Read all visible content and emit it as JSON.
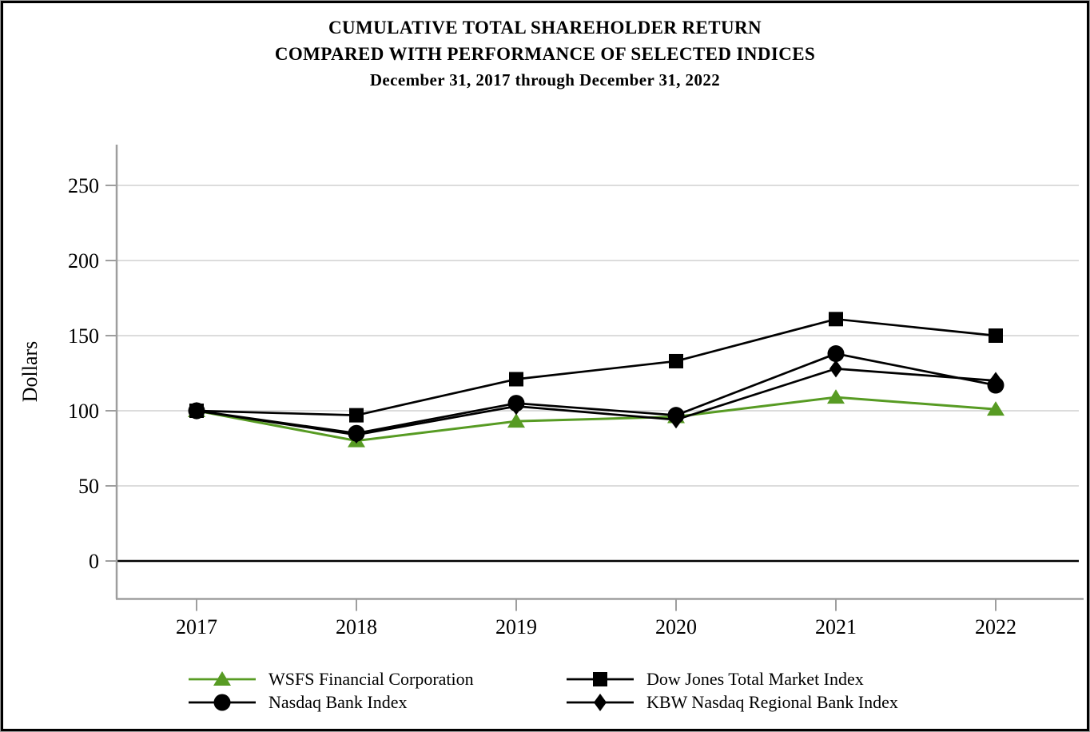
{
  "title": {
    "line1": "CUMULATIVE TOTAL SHAREHOLDER RETURN",
    "line2": "COMPARED WITH PERFORMANCE OF SELECTED INDICES",
    "line3": "December 31, 2017 through December 31, 2022"
  },
  "chart_data": {
    "type": "line",
    "title": "CUMULATIVE TOTAL SHAREHOLDER RETURN COMPARED WITH PERFORMANCE OF SELECTED INDICES",
    "subtitle": "December 31, 2017 through December 31, 2022",
    "xlabel": "",
    "ylabel": "Dollars",
    "categories": [
      "2017",
      "2018",
      "2019",
      "2020",
      "2021",
      "2022"
    ],
    "yticks": [
      0,
      50,
      100,
      150,
      200,
      250
    ],
    "ylim": [
      -25,
      277
    ],
    "grid": true,
    "legend_position": "bottom",
    "colors": {
      "axis": "#9e9e9e",
      "gridline": "#dcdcdc",
      "zero_line": "#000000",
      "wsfs_green": "#579b23",
      "black_series": "#000000"
    },
    "series": [
      {
        "name": "WSFS Financial Corporation",
        "marker": "triangle",
        "color": "#579b23",
        "values": [
          100,
          80,
          93,
          96,
          109,
          101
        ]
      },
      {
        "name": "Dow Jones Total Market Index",
        "marker": "square",
        "color": "#000000",
        "values": [
          100,
          97,
          121,
          133,
          161,
          150
        ]
      },
      {
        "name": "Nasdaq Bank Index",
        "marker": "circle",
        "color": "#000000",
        "values": [
          100,
          85,
          105,
          97,
          138,
          117
        ]
      },
      {
        "name": "KBW Nasdaq Regional Bank Index",
        "marker": "diamond",
        "color": "#000000",
        "values": [
          100,
          84,
          103,
          94,
          128,
          120
        ]
      }
    ]
  }
}
